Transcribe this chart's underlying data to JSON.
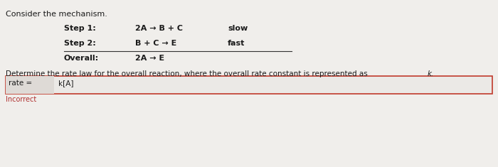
{
  "background_color": "#d8d6d2",
  "panel_color": "#f0eeeb",
  "title": "Consider the mechanism.",
  "step1_label": "Step 1:",
  "step1_reaction": "2A → B + C",
  "step1_speed": "slow",
  "step2_label": "Step 2:",
  "step2_reaction": "B + C → E",
  "step2_speed": "fast",
  "overall_label": "Overall:",
  "overall_reaction": "2A → E",
  "question_main": "Determine the rate law for the overall reaction, where the overall rate constant is represented as ",
  "question_k": "k.",
  "rate_label": "rate =",
  "rate_answer": "k[A]",
  "incorrect_text": "Incorrect",
  "box_border_color": "#c0392b",
  "incorrect_color": "#b03030",
  "text_color": "#1a1a1a",
  "box_bg": "#e8e6e3",
  "line_color": "#333333",
  "title_fontsize": 8.0,
  "body_fontsize": 8.0,
  "question_fontsize": 7.5,
  "rate_fontsize": 7.5
}
